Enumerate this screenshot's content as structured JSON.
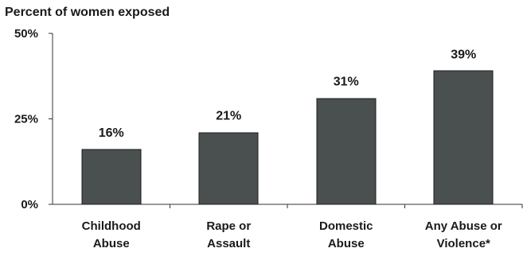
{
  "chart_data": {
    "type": "bar",
    "title": "Percent of women exposed",
    "categories": [
      [
        "Childhood",
        "Abuse"
      ],
      [
        "Rape or",
        "Assault"
      ],
      [
        "Domestic",
        "Abuse"
      ],
      [
        "Any Abuse or",
        "Violence*"
      ]
    ],
    "values": [
      16,
      21,
      31,
      39
    ],
    "value_labels": [
      "16%",
      "21%",
      "31%",
      "39%"
    ],
    "yticks": [
      {
        "value": 0,
        "label": "0%"
      },
      {
        "value": 25,
        "label": "25%"
      },
      {
        "value": 50,
        "label": "50%"
      }
    ],
    "ylim": [
      0,
      50
    ],
    "xlabel": "",
    "ylabel": "",
    "grid": false,
    "bar_color": "#4a4f4f"
  }
}
